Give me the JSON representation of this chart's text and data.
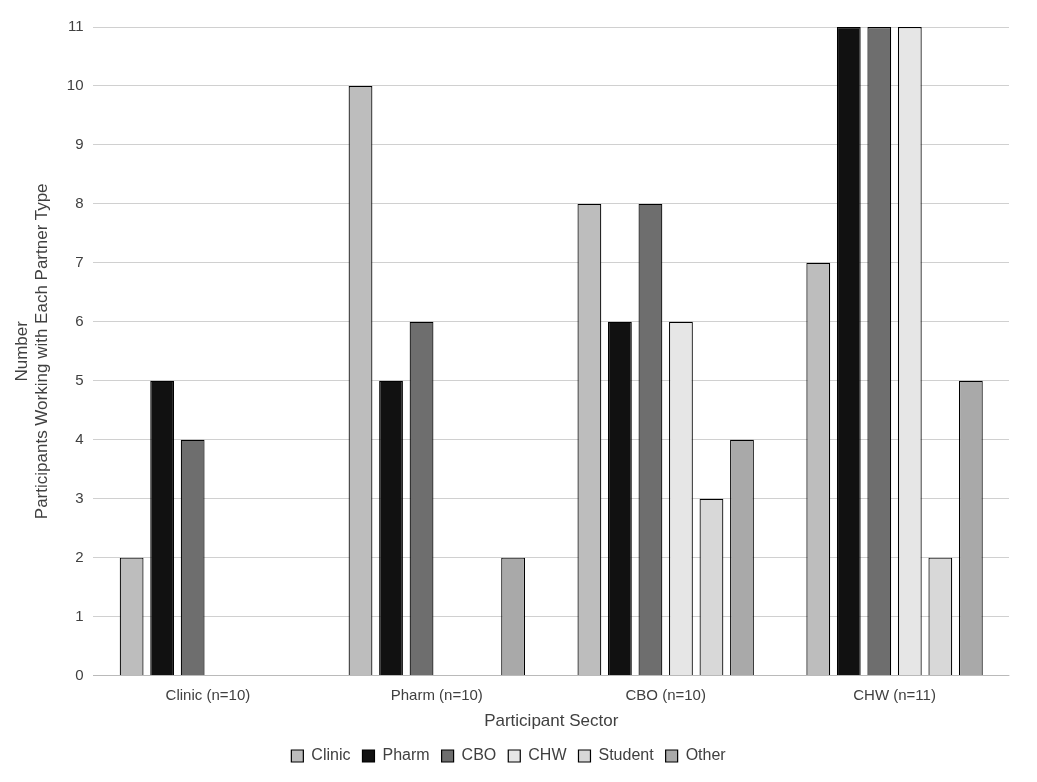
{
  "chart_data": {
    "type": "bar",
    "xlabel": "Participant Sector",
    "ylabel": "Number\nParticipants Working with Each Partner Type",
    "categories": [
      "Clinic (n=10)",
      "Pharm (n=10)",
      "CBO (n=10)",
      "CHW (n=11)"
    ],
    "series": [
      {
        "name": "Clinic",
        "color": "#bdbdbd",
        "values": [
          2,
          10,
          8,
          7
        ]
      },
      {
        "name": "Pharm",
        "color": "#111111",
        "values": [
          5,
          5,
          6,
          11
        ]
      },
      {
        "name": "CBO",
        "color": "#6e6e6e",
        "values": [
          4,
          6,
          8,
          11
        ]
      },
      {
        "name": "CHW",
        "color": "#e6e6e6",
        "values": [
          0,
          0,
          6,
          11
        ]
      },
      {
        "name": "Student",
        "color": "#d8d8d8",
        "values": [
          0,
          0,
          3,
          2
        ]
      },
      {
        "name": "Other",
        "color": "#a9a9a9",
        "values": [
          0,
          2,
          4,
          5
        ]
      }
    ],
    "ylim": [
      0,
      11
    ],
    "yticks": [
      0,
      1,
      2,
      3,
      4,
      5,
      6,
      7,
      8,
      9,
      10,
      11
    ],
    "grid": "y",
    "legend": "bottom"
  }
}
